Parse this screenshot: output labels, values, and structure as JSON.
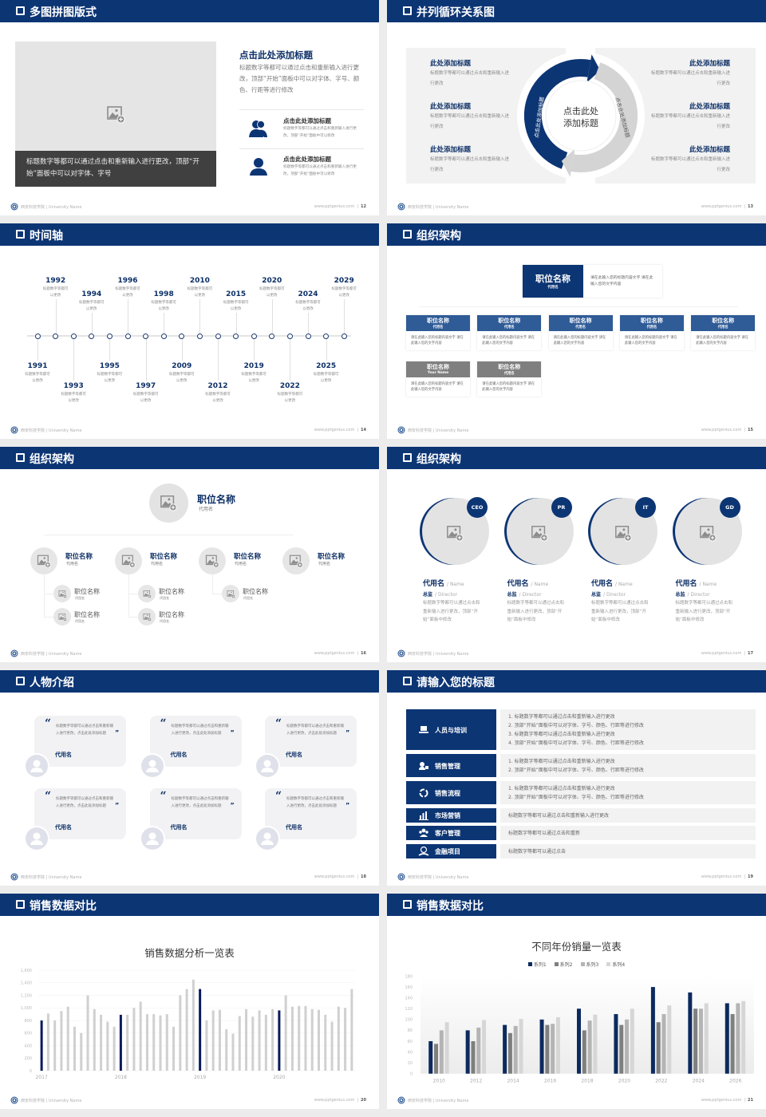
{
  "footer": {
    "school": "西安科技学院 | University Name",
    "site": "www.pptgenius.com"
  },
  "colors": {
    "navy": "#0c3574",
    "mid_blue": "#2f5b97",
    "gray_box": "#f2f2f2",
    "dark_caption": "#404040",
    "gray_header": "#7f7f7f"
  },
  "slides": [
    {
      "title": "多图拼图版式",
      "page": "12",
      "caption": "标题数字等都可以通过点击和重新输入进行更改，顶部“开始”面板中可以对字体、字号",
      "heading": "点击此处添加标题",
      "body": "标题数字等都可以通过点击和重新输入进行更改，顶部“开始”面板中可以对字体、字号、颜色、行距等进行修改",
      "items": [
        {
          "icon": "users-icon",
          "title": "点击此处添加标题",
          "text": "标题数字等都可以通过点击和重新输入进行更改，顶部“开始”面板中可以修改"
        },
        {
          "icon": "user-icon",
          "title": "点击此处添加标题",
          "text": "标题数字等都可以通过点击和重新输入进行更改，顶部“开始”面板中可以修改"
        }
      ]
    },
    {
      "title": "并列循环关系图",
      "page": "13",
      "center_line1": "点击此处",
      "center_line2": "添加标题",
      "arc_left": "点击此处添加标题",
      "arc_right": "点击此处添加标题",
      "left_items": [
        {
          "title": "此处添加标题",
          "text": "标题数字等都可以通过点击和重新输入进行更改"
        },
        {
          "title": "此处添加标题",
          "text": "标题数字等都可以通过点击和重新输入进行更改"
        },
        {
          "title": "此处添加标题",
          "text": "标题数字等都可以通过点击和重新输入进行更改"
        }
      ],
      "right_items": [
        {
          "title": "此处添加标题",
          "text": "标题数字等都可以通过点击和重新输入进行更改"
        },
        {
          "title": "此处添加标题",
          "text": "标题数字等都可以通过点击和重新输入进行更改"
        },
        {
          "title": "此处添加标题",
          "text": "标题数字等都可以通过点击和重新输入进行更改"
        }
      ]
    },
    {
      "title": "时间轴",
      "page": "14",
      "events": [
        {
          "year": "1991",
          "text": "标题数字等都可以更改"
        },
        {
          "year": "1992",
          "text": "标题数字等都可以更改"
        },
        {
          "year": "1993",
          "text": "标题数字等都可以更改"
        },
        {
          "year": "1994",
          "text": "标题数字等都可以更改"
        },
        {
          "year": "1995",
          "text": "标题数字等都可以更改"
        },
        {
          "year": "1996",
          "text": "标题数字等都可以更改"
        },
        {
          "year": "1997",
          "text": "标题数字等都可以更改"
        },
        {
          "year": "1998",
          "text": "标题数字等都可以更改"
        },
        {
          "year": "2009",
          "text": "标题数字等都可以更改"
        },
        {
          "year": "2010",
          "text": "标题数字等都可以更改"
        },
        {
          "year": "2012",
          "text": "标题数字等都可以更改"
        },
        {
          "year": "2015",
          "text": "标题数字等都可以更改"
        },
        {
          "year": "2019",
          "text": "标题数字等都可以更改"
        },
        {
          "year": "2020",
          "text": "标题数字等都可以更改"
        },
        {
          "year": "2022",
          "text": "标题数字等都可以更改"
        },
        {
          "year": "2024",
          "text": "标题数字等都可以更改"
        },
        {
          "year": "2025",
          "text": "标题数字等都可以更改"
        },
        {
          "year": "2029",
          "text": "标题数字等都可以更改"
        }
      ]
    },
    {
      "title": "组织架构",
      "page": "15",
      "top": {
        "title": "职位名称",
        "sub": "代用名",
        "desc": "请在此输入您的标题内容文字 请在此输入您的文字内容"
      },
      "boxes": [
        {
          "title": "职位名称",
          "sub": "代用名",
          "desc": "请在此输入您的标题内容文字 请在此输入您的文字内容",
          "style": "blue"
        },
        {
          "title": "职位名称",
          "sub": "代用名",
          "desc": "请在此输入您的标题内容文字 请在此输入您的文字内容",
          "style": "blue"
        },
        {
          "title": "职位名称",
          "sub": "代用名",
          "desc": "请在此输入您的标题内容文字 请在此输入您的文字内容",
          "style": "blue"
        },
        {
          "title": "职位名称",
          "sub": "代用名",
          "desc": "请在此输入您的标题内容文字 请在此输入您的文字内容",
          "style": "blue"
        },
        {
          "title": "职位名称",
          "sub": "代用名",
          "desc": "请在此输入您的标题内容文字 请在此输入您的文字内容",
          "style": "blue"
        },
        {
          "title": "职位名称",
          "sub": "Your Name",
          "desc": "请在此输入您的标题内容文字 请在此输入您的文字内容",
          "style": "gray"
        },
        {
          "title": "职位名称",
          "sub": "代用名",
          "desc": "请在此输入您的标题内容文字 请在此输入您的文字内容",
          "style": "gray"
        }
      ]
    },
    {
      "title": "组织架构",
      "page": "16",
      "top": {
        "title": "职位名称",
        "sub": "代用名"
      },
      "groups": [
        {
          "title": "职位名称",
          "sub": "代用名",
          "children": [
            {
              "title": "职位名称",
              "sub": "代用名"
            },
            {
              "title": "职位名称",
              "sub": "代用名"
            }
          ]
        },
        {
          "title": "职位名称",
          "sub": "代用名",
          "children": [
            {
              "title": "职位名称",
              "sub": "代用名"
            },
            {
              "title": "职位名称",
              "sub": "代用名"
            }
          ]
        },
        {
          "title": "职位名称",
          "sub": "代用名",
          "children": [
            {
              "title": "职位名称",
              "sub": "代用名"
            }
          ]
        },
        {
          "title": "职位名称",
          "sub": "代用名",
          "children": []
        }
      ]
    },
    {
      "title": "组织架构",
      "page": "17",
      "people": [
        {
          "badge": "CEO",
          "name": "代用名",
          "name_en": "/ Name",
          "role": "总监",
          "role_en": "/ Director",
          "text": "标题数字等都可以通过点击和重新输入进行更改，顶部“开始”面板中修改"
        },
        {
          "badge": "PR",
          "name": "代用名",
          "name_en": "/ Name",
          "role": "总监",
          "role_en": "/ Director",
          "text": "标题数字等都可以通过点击和重新输入进行更改，顶部“开始”面板中修改"
        },
        {
          "badge": "IT",
          "name": "代用名",
          "name_en": "/ Name",
          "role": "总监",
          "role_en": "/ Director",
          "text": "标题数字等都可以通过点击和重新输入进行更改，顶部“开始”面板中修改"
        },
        {
          "badge": "GD",
          "name": "代用名",
          "name_en": "/ Name",
          "role": "总监",
          "role_en": "/ Director",
          "text": "标题数字等都可以通过点击和重新输入进行更改，顶部“开始”面板中修改"
        }
      ]
    },
    {
      "title": "人物介绍",
      "page": "18",
      "cards": [
        {
          "quote": "标题数字等都可以通过点击和重新输入进行更改，点击此处添加标题",
          "name": "代用名"
        },
        {
          "quote": "标题数字等都可以通过点击和重新输入进行更改，点击此处添加标题",
          "name": "代用名"
        },
        {
          "quote": "标题数字等都可以通过点击和重新输入进行更改，点击此处添加标题",
          "name": "代用名"
        },
        {
          "quote": "标题数字等都可以通过点击和重新输入进行更改，点击此处添加标题",
          "name": "代用名"
        },
        {
          "quote": "标题数字等都可以通过点击和重新输入进行更改，点击此处添加标题",
          "name": "代用名"
        },
        {
          "quote": "标题数字等都可以通过点击和重新输入进行更改，点击此处添加标题",
          "name": "代用名"
        }
      ]
    },
    {
      "title": "请输入您的标题",
      "page": "19",
      "rows": [
        {
          "icon": "training-icon",
          "label": "人员与培训",
          "lines": [
            "1.  标题数字等都可以通过点击和重新输入进行更改",
            "2.  顶部“开始”面板中可以对字体、字号、颜色、行距等进行修改",
            "3.  标题数字等都可以通过点击和重新输入进行更改",
            "4.  顶部“开始”面板中可以对字体、字号、颜色、行距等进行修改"
          ]
        },
        {
          "icon": "sales-manager-icon",
          "label": "销售管理",
          "lines": [
            "1.  标题数字等都可以通过点击和重新输入进行更改",
            "2.  顶部“开始”面板中可以对字体、字号、颜色、行距等进行修改"
          ]
        },
        {
          "icon": "process-icon",
          "label": "销售流程",
          "lines": [
            "1.  标题数字等都可以通过点击和重新输入进行更改",
            "2.  顶部“开始”面板中可以对字体、字号、颜色、行距等进行修改"
          ]
        },
        {
          "icon": "bar-chart-icon",
          "label": "市场营销",
          "lines": [
            "标题数字等都可以通过点击和重新输入进行更改"
          ]
        },
        {
          "icon": "customers-icon",
          "label": "客户管理",
          "lines": [
            "标题数字等都可以通过点击和重新"
          ]
        },
        {
          "icon": "finance-icon",
          "label": "金融项目",
          "lines": [
            "标题数字等都可以通过点击"
          ]
        }
      ]
    },
    {
      "title": "销售数据对比",
      "page": "20"
    },
    {
      "title": "销售数据对比",
      "page": "21"
    }
  ],
  "chart_data": [
    {
      "type": "bar",
      "title": "销售数据分析一览表",
      "x_tick_labels": [
        "2017",
        "2018",
        "2019",
        "2020"
      ],
      "values": [
        800,
        910,
        800,
        950,
        1020,
        700,
        600,
        1200,
        980,
        890,
        780,
        700,
        890,
        890,
        1000,
        1100,
        900,
        900,
        880,
        900,
        700,
        1200,
        1300,
        1450,
        1300,
        800,
        960,
        970,
        660,
        590,
        870,
        980,
        860,
        960,
        890,
        980,
        960,
        1200,
        1020,
        1030,
        1030,
        980,
        970,
        890,
        780,
        1020,
        1000,
        1300
      ],
      "highlighted_indices": [
        0,
        12,
        24,
        36
      ],
      "highlight_color": "#0a1a5c",
      "bar_color": "#d0d0d0",
      "ylim": [
        0,
        1600
      ],
      "yticks": [
        "0",
        "200",
        "400",
        "600",
        "800",
        "1,000",
        "1,200",
        "1,400",
        "1,600"
      ],
      "grid": true
    },
    {
      "type": "bar",
      "title": "不同年份销量一览表",
      "categories": [
        "2010",
        "2012",
        "2014",
        "2016",
        "2018",
        "2020",
        "2022",
        "2024",
        "2026"
      ],
      "series": [
        {
          "name": "系列1",
          "color": "#0c2a5e",
          "values": [
            60,
            80,
            90,
            100,
            120,
            110,
            160,
            150,
            130
          ]
        },
        {
          "name": "系列2",
          "color": "#7f7f7f",
          "values": [
            55,
            60,
            75,
            90,
            80,
            90,
            95,
            120,
            110
          ]
        },
        {
          "name": "系列3",
          "color": "#b4b4b4",
          "values": [
            80,
            85,
            88,
            92,
            98,
            100,
            110,
            120,
            130
          ]
        },
        {
          "name": "系列4",
          "color": "#d6d6d6",
          "values": [
            95,
            99,
            101,
            104,
            109,
            120,
            126,
            130,
            134
          ]
        }
      ],
      "ylim": [
        0,
        180
      ],
      "yticks": [
        "0",
        "20",
        "40",
        "60",
        "80",
        "100",
        "120",
        "140",
        "160",
        "180"
      ],
      "legend": "top"
    }
  ]
}
